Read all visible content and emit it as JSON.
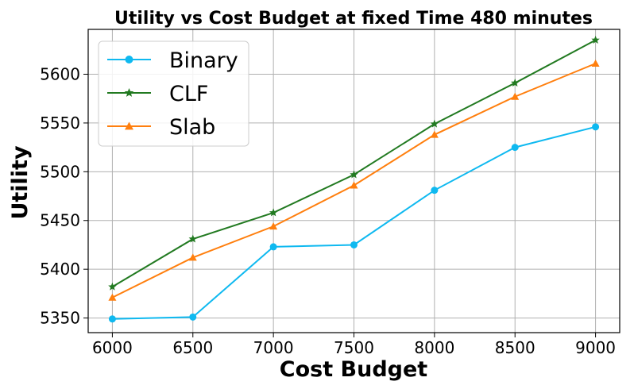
{
  "chart_data": {
    "type": "line",
    "title": "Utility vs Cost Budget at fixed Time 480 minutes",
    "xlabel": "Cost Budget",
    "ylabel": "Utility",
    "x": [
      6000,
      6500,
      7000,
      7500,
      8000,
      8500,
      9000
    ],
    "xticks": [
      "6000",
      "6500",
      "7000",
      "7500",
      "8000",
      "8500",
      "9000"
    ],
    "yticks": [
      "5350",
      "5400",
      "5450",
      "5500",
      "5550",
      "5600"
    ],
    "xlim": [
      5850,
      9150
    ],
    "ylim": [
      5335,
      5646
    ],
    "grid": true,
    "legend_position": "top-left",
    "series": [
      {
        "name": "Binary",
        "color": "#0fb9f0",
        "marker": "circle",
        "values": [
          5349,
          5351,
          5423,
          5425,
          5481,
          5525,
          5546
        ]
      },
      {
        "name": "CLF",
        "color": "#227a21",
        "marker": "star",
        "values": [
          5382,
          5431,
          5458,
          5497,
          5549,
          5591,
          5635
        ]
      },
      {
        "name": "Slab",
        "color": "#ff7f0e",
        "marker": "triangle",
        "values": [
          5371,
          5412,
          5444,
          5486,
          5538,
          5577,
          5611
        ]
      }
    ]
  }
}
